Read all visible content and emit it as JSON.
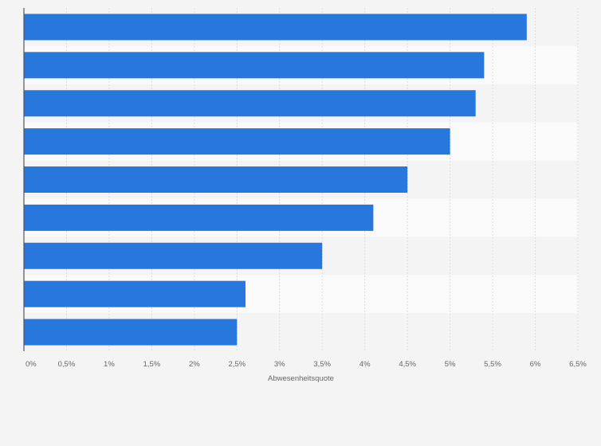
{
  "chart_data": {
    "type": "bar",
    "orientation": "horizontal",
    "title": "",
    "xlabel": "Abwesenheitsquote",
    "ylabel": "",
    "categories": [
      "",
      "",
      "",
      "",
      "",
      "",
      "",
      "",
      ""
    ],
    "values": [
      5.9,
      5.4,
      5.3,
      5.0,
      4.5,
      4.1,
      3.5,
      2.6,
      2.5
    ],
    "xlim": [
      0,
      6.5
    ],
    "ticks": [
      0,
      0.5,
      1,
      1.5,
      2,
      2.5,
      3,
      3.5,
      4,
      4.5,
      5,
      5.5,
      6,
      6.5
    ],
    "tick_labels": [
      "0%",
      "0,5%",
      "1%",
      "1,5%",
      "2%",
      "2,5%",
      "3%",
      "3,5%",
      "4%",
      "4,5%",
      "5%",
      "5,5%",
      "6%",
      "6,5%"
    ],
    "grid": true,
    "legend": "none",
    "bar_color": "#2877dd",
    "band_colors": [
      "#f4f4f4",
      "#fafafa"
    ],
    "background": "#f4f4f4",
    "gridline_color": "#dcdcdc",
    "axis_color": "#555555",
    "tick_label_color": "#666666"
  }
}
